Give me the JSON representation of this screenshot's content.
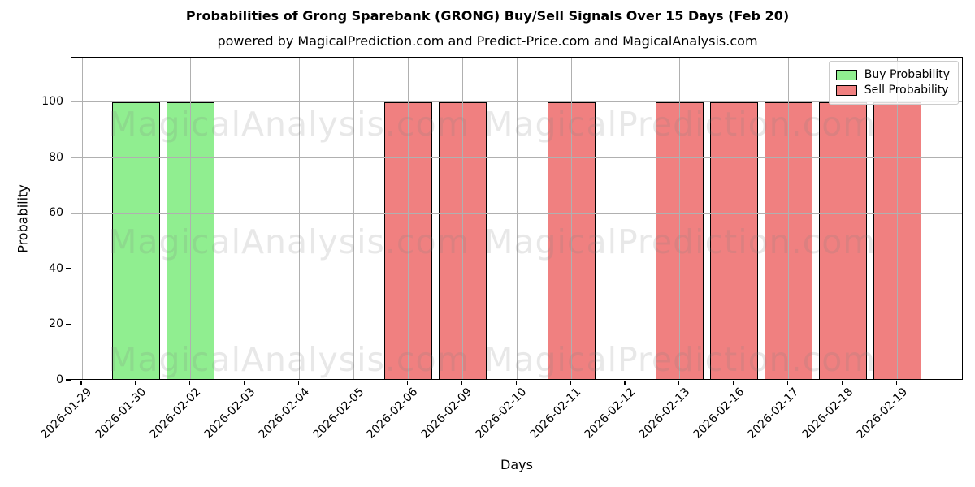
{
  "chart_data": {
    "type": "bar",
    "title": "Probabilities of Grong Sparebank (GRONG) Buy/Sell Signals Over 15 Days (Feb 20)",
    "subtitle": "powered by MagicalPrediction.com and Predict-Price.com and MagicalAnalysis.com",
    "xlabel": "Days",
    "ylabel": "Probability",
    "ylim": [
      0,
      116
    ],
    "yticks": [
      0,
      20,
      40,
      60,
      80,
      100
    ],
    "dashed_line_y": 110,
    "grid": true,
    "grid_above_bars": true,
    "legend_position": "upper right",
    "categories": [
      "2026-01-29",
      "2026-01-30",
      "2026-02-02",
      "2026-02-03",
      "2026-02-04",
      "2026-02-05",
      "2026-02-06",
      "2026-02-09",
      "2026-02-10",
      "2026-02-11",
      "2026-02-12",
      "2026-02-13",
      "2026-02-16",
      "2026-02-17",
      "2026-02-18",
      "2026-02-19"
    ],
    "series": [
      {
        "name": "Buy Probability",
        "color": "#90EE90",
        "values": [
          0,
          100,
          100,
          0,
          0,
          0,
          0,
          0,
          0,
          0,
          0,
          0,
          0,
          0,
          0,
          0
        ]
      },
      {
        "name": "Sell Probability",
        "color": "#F08080",
        "values": [
          0,
          0,
          0,
          0,
          0,
          0,
          100,
          100,
          0,
          100,
          0,
          100,
          100,
          100,
          100,
          100
        ]
      }
    ]
  },
  "watermarks": {
    "left_text": "MagicalAnalysis.com",
    "right_text": "MagicalPrediction.com"
  },
  "colors": {
    "background": "#ffffff",
    "bar_edge": "#000000",
    "grid": "#b0b0b0",
    "dashed_line": "#808080",
    "watermark": "rgba(128,128,128,0.18)",
    "legend_border": "#cccccc",
    "axis": "#000000"
  }
}
